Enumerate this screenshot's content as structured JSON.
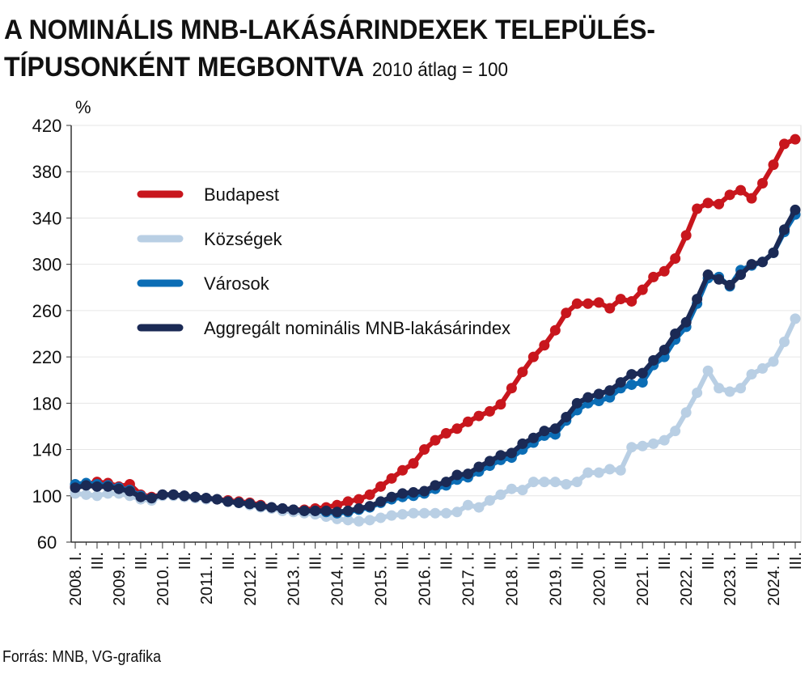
{
  "chart_data": {
    "type": "line",
    "title": "A NOMINÁLIS MNB-LAKÁSÁRINDEXEK TELEPÜLÉS-",
    "title_line2": "TÍPUSONKÉNT MEGBONTVA",
    "subtitle": "2010 átlag = 100",
    "y_unit": "%",
    "source": "Forrás: MNB, VG-grafika",
    "categories": [
      "2008. I.",
      null,
      "III.",
      null,
      "2009. I.",
      null,
      "III.",
      null,
      "2010. I.",
      null,
      "III.",
      null,
      "2011. I.",
      null,
      "III.",
      null,
      "2012. I.",
      null,
      "III.",
      null,
      "2013. I.",
      null,
      "III.",
      null,
      "2014. I.",
      null,
      "III.",
      null,
      "2015. I.",
      null,
      "III.",
      null,
      "2016. I.",
      null,
      "III.",
      null,
      "2017. I.",
      null,
      "III.",
      null,
      "2018. I.",
      null,
      "III.",
      null,
      "2019. I.",
      null,
      "III.",
      null,
      "2020. I.",
      null,
      "III.",
      null,
      "2021. I.",
      null,
      "III.",
      null,
      "2022. I.",
      null,
      "III.",
      null,
      "2023. I.",
      null,
      "III.",
      null,
      "2024. I.",
      null,
      "III."
    ],
    "ylim": [
      60,
      420
    ],
    "yticks": [
      60,
      100,
      140,
      180,
      220,
      260,
      300,
      340,
      380,
      420
    ],
    "grid": true,
    "series": [
      {
        "name": "Budapest",
        "color": "#c8161d",
        "values": [
          108,
          110,
          112,
          111,
          108,
          110,
          101,
          99,
          101,
          101,
          100,
          99,
          98,
          97,
          96,
          95,
          94,
          92,
          90,
          89,
          88,
          88,
          89,
          90,
          92,
          95,
          97,
          101,
          108,
          115,
          122,
          128,
          140,
          148,
          154,
          158,
          164,
          169,
          173,
          179,
          193,
          207,
          220,
          230,
          243,
          258,
          266,
          266,
          267,
          262,
          270,
          268,
          278,
          289,
          294,
          305,
          325,
          348,
          353,
          352,
          360,
          364,
          357,
          370,
          386,
          404,
          408
        ]
      },
      {
        "name": "Községek",
        "color": "#b9cfe4",
        "values": [
          102,
          101,
          100,
          102,
          102,
          100,
          97,
          96,
          100,
          100,
          99,
          98,
          97,
          97,
          96,
          94,
          92,
          90,
          89,
          87,
          86,
          85,
          84,
          82,
          80,
          79,
          78,
          79,
          81,
          83,
          84,
          85,
          85,
          85,
          85,
          86,
          92,
          90,
          96,
          101,
          106,
          105,
          112,
          112,
          112,
          110,
          112,
          120,
          120,
          123,
          122,
          142,
          143,
          145,
          148,
          156,
          172,
          189,
          208,
          193,
          190,
          193,
          205,
          210,
          216,
          233,
          253
        ]
      },
      {
        "name": "Városok",
        "color": "#0b6db5",
        "values": [
          110,
          111,
          110,
          109,
          107,
          105,
          100,
          98,
          101,
          101,
          100,
          99,
          98,
          97,
          95,
          94,
          93,
          91,
          90,
          89,
          88,
          87,
          87,
          86,
          85,
          86,
          88,
          90,
          94,
          97,
          99,
          100,
          102,
          106,
          109,
          114,
          116,
          121,
          126,
          131,
          133,
          140,
          146,
          152,
          153,
          165,
          174,
          180,
          182,
          185,
          193,
          196,
          198,
          213,
          220,
          235,
          246,
          266,
          288,
          289,
          281,
          295,
          299,
          302,
          310,
          328,
          343
        ]
      },
      {
        "name": "Aggregált nominális MNB-lakásárindex",
        "color": "#1b2a55",
        "values": [
          107,
          109,
          108,
          108,
          106,
          104,
          99,
          98,
          101,
          101,
          100,
          99,
          98,
          97,
          95,
          94,
          93,
          91,
          90,
          89,
          88,
          87,
          87,
          87,
          86,
          87,
          89,
          91,
          95,
          99,
          102,
          103,
          104,
          109,
          112,
          118,
          119,
          125,
          130,
          135,
          137,
          145,
          150,
          156,
          158,
          168,
          180,
          185,
          188,
          191,
          198,
          205,
          206,
          217,
          226,
          240,
          250,
          270,
          291,
          287,
          282,
          291,
          300,
          302,
          310,
          330,
          347
        ]
      }
    ]
  }
}
